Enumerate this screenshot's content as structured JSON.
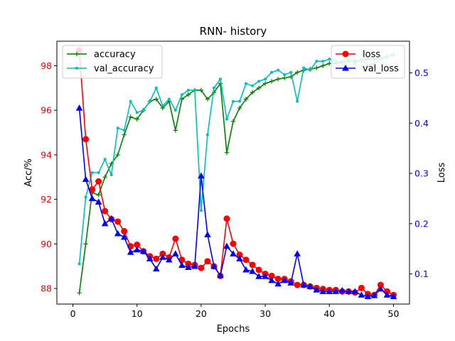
{
  "chart_data": {
    "type": "line",
    "title": "RNN- history",
    "xlabel": "Epochs",
    "ylabel": "Acc/%",
    "ylabel_right": "Loss",
    "xlim": [
      -2.5,
      52.5
    ],
    "ylim": [
      87.3,
      99.1
    ],
    "ylim_right": [
      0.04,
      0.563
    ],
    "x_ticks": [
      0,
      10,
      20,
      30,
      40,
      50
    ],
    "y_ticks": [
      88,
      90,
      92,
      94,
      96,
      98
    ],
    "y_ticks_right": [
      0.1,
      0.2,
      0.3,
      0.4,
      0.5
    ],
    "x": [
      1,
      2,
      3,
      4,
      5,
      6,
      7,
      8,
      9,
      10,
      11,
      12,
      13,
      14,
      15,
      16,
      17,
      18,
      19,
      20,
      21,
      22,
      23,
      24,
      25,
      26,
      27,
      28,
      29,
      30,
      31,
      32,
      33,
      34,
      35,
      36,
      37,
      38,
      39,
      40,
      41,
      42,
      43,
      44,
      45,
      46,
      47,
      48,
      49,
      50
    ],
    "legend_left": [
      "accuracy",
      "val_accuracy"
    ],
    "legend_right": [
      "loss",
      "val_loss"
    ],
    "colors": {
      "accuracy": "#008000",
      "val_accuracy": "#00bfbf",
      "loss": "#ff0000",
      "val_loss": "#0000ff",
      "left_axis_ticks": "#ff0000",
      "right_axis_ticks": "#0000ff"
    },
    "series": [
      {
        "name": "accuracy",
        "axis": "left",
        "marker": "plus",
        "values": [
          87.8,
          90.0,
          92.3,
          92.2,
          93.0,
          93.6,
          94.0,
          94.9,
          95.7,
          95.6,
          96.0,
          96.4,
          96.5,
          96.1,
          96.4,
          95.1,
          96.5,
          96.7,
          96.9,
          96.9,
          96.5,
          96.8,
          97.2,
          94.1,
          95.5,
          96.1,
          96.5,
          96.8,
          97.0,
          97.2,
          97.3,
          97.4,
          97.45,
          97.5,
          97.7,
          97.8,
          97.85,
          97.9,
          98.0,
          98.1,
          98.1,
          98.15,
          98.2,
          98.2,
          98.25,
          98.3,
          98.3,
          98.35,
          98.4,
          98.5
        ]
      },
      {
        "name": "val_accuracy",
        "axis": "left",
        "marker": "dot",
        "values": [
          89.1,
          92.1,
          93.2,
          93.2,
          93.8,
          93.1,
          95.2,
          95.1,
          96.4,
          95.9,
          96.0,
          96.4,
          97.0,
          96.2,
          96.5,
          96.0,
          96.7,
          96.9,
          96.9,
          91.5,
          94.9,
          97.0,
          97.4,
          95.6,
          96.4,
          96.4,
          97.2,
          97.1,
          97.3,
          97.4,
          97.7,
          97.8,
          97.6,
          97.7,
          96.4,
          97.9,
          97.8,
          98.2,
          98.2,
          98.3,
          98.2,
          98.2,
          98.3,
          98.1,
          98.3,
          98.0,
          98.1,
          98.3,
          98.4,
          98.5
        ]
      },
      {
        "name": "loss",
        "axis": "right",
        "marker": "circle",
        "values": [
          0.545,
          0.368,
          0.268,
          0.284,
          0.225,
          0.209,
          0.204,
          0.185,
          0.155,
          0.158,
          0.145,
          0.135,
          0.13,
          0.14,
          0.133,
          0.17,
          0.128,
          0.12,
          0.118,
          0.112,
          0.125,
          0.115,
          0.096,
          0.21,
          0.16,
          0.138,
          0.128,
          0.118,
          0.108,
          0.1,
          0.096,
          0.09,
          0.09,
          0.085,
          0.078,
          0.078,
          0.075,
          0.072,
          0.07,
          0.068,
          0.068,
          0.065,
          0.065,
          0.063,
          0.072,
          0.06,
          0.058,
          0.078,
          0.065,
          0.058
        ]
      },
      {
        "name": "val_loss",
        "axis": "right",
        "marker": "triangle",
        "values": [
          0.43,
          0.288,
          0.25,
          0.243,
          0.2,
          0.21,
          0.18,
          0.173,
          0.143,
          0.148,
          0.145,
          0.13,
          0.11,
          0.133,
          0.128,
          0.14,
          0.117,
          0.113,
          0.115,
          0.295,
          0.178,
          0.115,
          0.097,
          0.155,
          0.14,
          0.13,
          0.108,
          0.105,
          0.095,
          0.095,
          0.087,
          0.08,
          0.087,
          0.082,
          0.14,
          0.078,
          0.075,
          0.068,
          0.065,
          0.065,
          0.065,
          0.067,
          0.065,
          0.065,
          0.058,
          0.055,
          0.057,
          0.07,
          0.058,
          0.055
        ]
      }
    ],
    "grid": false,
    "legend_placement": [
      "upper-left",
      "upper-right"
    ]
  }
}
